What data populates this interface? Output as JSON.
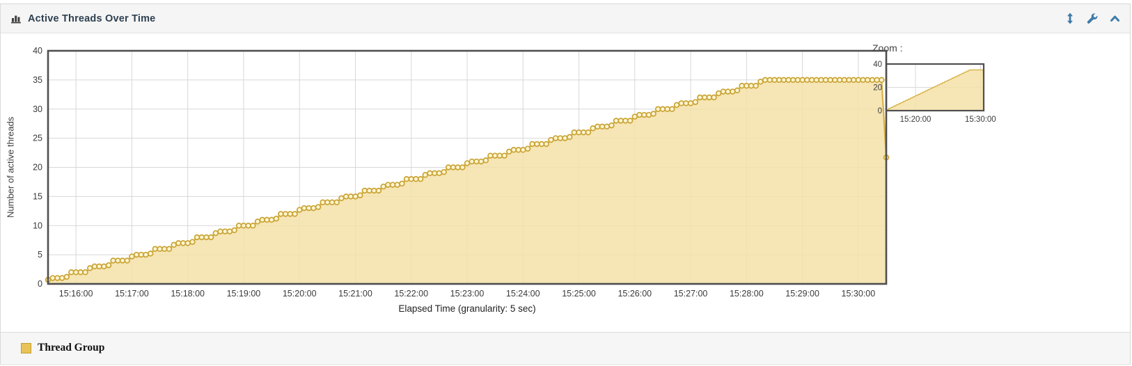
{
  "header": {
    "title": "Active Threads Over Time",
    "icons": {
      "chart_type": "bar-chart-icon",
      "resize": "resize-vertical-icon",
      "settings": "wrench-icon",
      "collapse": "chevron-up-icon"
    }
  },
  "zoom_panel": {
    "label": "Zoom :"
  },
  "legend": {
    "position": "bottom",
    "items": [
      {
        "label": "Thread Group",
        "color": "#e9c356"
      }
    ]
  },
  "colors": {
    "accent_blue": "#3e7ba9",
    "series_line": "#d7b245",
    "series_fill": "#f4e1a8",
    "marker_fill": "#fdf5d2",
    "marker_stroke": "#c9a334",
    "plot_border": "#4f4f4f",
    "gridline": "#d8d8d8",
    "header_bg": "#f5f5f5",
    "legend_bg": "#f6f6f6"
  },
  "chart_data": {
    "type": "area",
    "title": "Active Threads Over Time",
    "xlabel": "Elapsed Time (granularity: 5 sec)",
    "ylabel": "Number of active threads",
    "ylim": [
      0,
      40
    ],
    "y_ticks": [
      0,
      5,
      10,
      15,
      20,
      25,
      30,
      35,
      40
    ],
    "grid": true,
    "markers": true,
    "legend_position": "bottom",
    "x_start": "15:15:30",
    "x_end": "15:30:30",
    "x_step_sec": 5,
    "x_tick_labels": [
      "15:16:00",
      "15:17:00",
      "15:18:00",
      "15:19:00",
      "15:20:00",
      "15:21:00",
      "15:22:00",
      "15:23:00",
      "15:24:00",
      "15:25:00",
      "15:26:00",
      "15:27:00",
      "15:28:00",
      "15:29:00",
      "15:30:00"
    ],
    "series": [
      {
        "name": "Thread Group",
        "values": [
          0.7,
          1,
          1,
          1,
          1.2,
          2,
          2,
          2,
          2,
          2.7,
          3,
          3,
          3,
          3.2,
          4,
          4,
          4,
          4,
          4.7,
          5,
          5,
          5,
          5.2,
          6,
          6,
          6,
          6,
          6.7,
          7,
          7,
          7,
          7.2,
          8,
          8,
          8,
          8,
          8.7,
          9,
          9,
          9,
          9.2,
          10,
          10,
          10,
          10,
          10.7,
          11,
          11,
          11,
          11.2,
          12,
          12,
          12,
          12,
          12.7,
          13,
          13,
          13,
          13.2,
          14,
          14,
          14,
          14,
          14.7,
          15,
          15,
          15,
          15.2,
          16,
          16,
          16,
          16,
          16.7,
          17,
          17,
          17,
          17.2,
          18,
          18,
          18,
          18,
          18.7,
          19,
          19,
          19,
          19.2,
          20,
          20,
          20,
          20,
          20.7,
          21,
          21,
          21,
          21.2,
          22,
          22,
          22,
          22,
          22.7,
          23,
          23,
          23,
          23.2,
          24,
          24,
          24,
          24,
          24.7,
          25,
          25,
          25,
          25.2,
          26,
          26,
          26,
          26,
          26.7,
          27,
          27,
          27,
          27.2,
          28,
          28,
          28,
          28,
          28.7,
          29,
          29,
          29,
          29.2,
          30,
          30,
          30,
          30,
          30.7,
          31,
          31,
          31,
          31.2,
          32,
          32,
          32,
          32,
          32.7,
          33,
          33,
          33,
          33.2,
          34,
          34,
          34,
          34,
          34.7,
          35,
          35,
          35,
          35,
          35,
          35,
          35,
          35,
          35,
          35,
          35,
          35,
          35,
          35,
          35,
          35,
          35,
          35,
          35,
          35,
          35,
          35,
          35,
          35,
          35,
          35,
          21.7
        ]
      }
    ],
    "overview": {
      "y_ticks": [
        0,
        20,
        40
      ],
      "x_tick_labels": [
        "15:20:00",
        "15:30:00"
      ]
    }
  }
}
